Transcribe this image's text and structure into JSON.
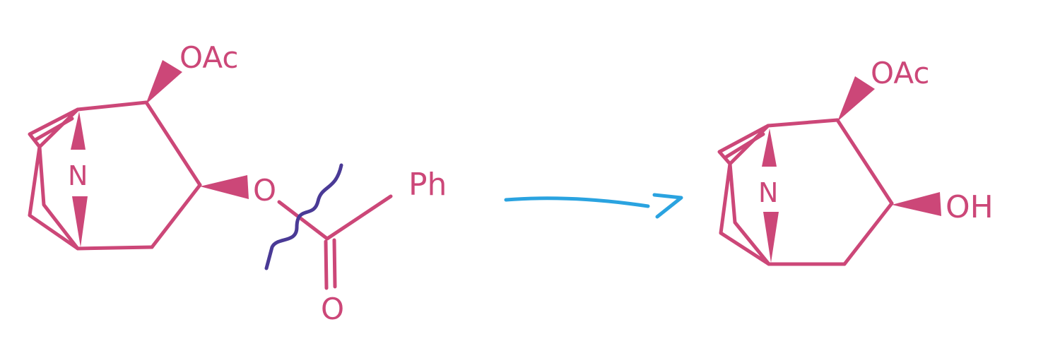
{
  "colors": {
    "molecule": "#CC4778",
    "cleavage_mark": "#4A3A96",
    "arrow": "#2AA3E0",
    "background": "#FFFFFF"
  },
  "reactant": {
    "bridge_atom": "N",
    "top_substituent": "OAc",
    "ester_oxygen": "O",
    "carbonyl_oxygen": "O",
    "aryl_group": "Ph"
  },
  "product": {
    "bridge_atom": "N",
    "top_substituent": "OAc",
    "hydroxyl": "OH"
  },
  "icons": {
    "cleavage": "wavy-bond-cleavage-mark",
    "reaction_arrow": "hand-drawn-right-arrow"
  }
}
